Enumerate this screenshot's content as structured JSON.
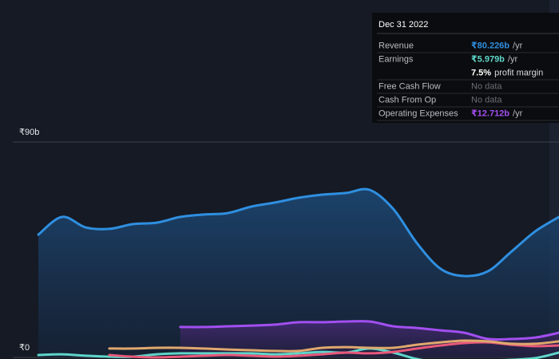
{
  "chart_data": {
    "type": "line",
    "categories": [
      null,
      null,
      null,
      null,
      null,
      null,
      null,
      null,
      null,
      null,
      null,
      null,
      null,
      null,
      null,
      null,
      null,
      null,
      null,
      null,
      null,
      null,
      null
    ],
    "ylim": [
      0,
      90
    ],
    "yticks": [
      {
        "value": 0,
        "label": "₹0"
      },
      {
        "value": 90,
        "label": "₹90b"
      }
    ],
    "grid": true,
    "series": [
      {
        "name": "Revenue",
        "color": "#2f8fe0",
        "area": true,
        "values": [
          51.3,
          58.7,
          54.3,
          53.7,
          55.7,
          56.3,
          58.7,
          59.7,
          60.3,
          63.0,
          64.7,
          66.7,
          68.0,
          68.7,
          70.0,
          62.0,
          47.7,
          37.0,
          34.0,
          36.0,
          44.3,
          52.7,
          58.7
        ]
      },
      {
        "name": "Earnings",
        "color": "#5fd6c9",
        "area": false,
        "values": [
          1.0,
          1.3,
          0.7,
          0.3,
          0.3,
          1.3,
          1.7,
          1.7,
          1.7,
          1.7,
          1.3,
          1.7,
          2.3,
          2.0,
          3.7,
          2.0,
          -0.7,
          -2.0,
          -2.0,
          -1.3,
          -1.0,
          -0.3,
          2.0
        ]
      },
      {
        "name": "Free Cash Flow",
        "color": "#e8587a",
        "area": false,
        "values": [
          null,
          null,
          null,
          1.0,
          0.3,
          0.0,
          0.3,
          0.7,
          1.0,
          0.7,
          0.3,
          0.7,
          1.3,
          2.0,
          1.7,
          2.3,
          3.7,
          5.0,
          6.0,
          6.3,
          5.3,
          4.7,
          5.0
        ]
      },
      {
        "name": "Cash From Op",
        "color": "#e0a86e",
        "area": false,
        "values": [
          null,
          null,
          null,
          3.7,
          3.7,
          4.0,
          4.0,
          3.7,
          3.3,
          3.0,
          2.7,
          2.7,
          4.0,
          4.3,
          4.0,
          4.0,
          5.3,
          6.3,
          7.0,
          6.7,
          5.7,
          5.7,
          6.7
        ]
      },
      {
        "name": "Operating Expenses",
        "color": "#a24ff0",
        "area": true,
        "values": [
          null,
          null,
          null,
          null,
          null,
          null,
          12.7,
          12.7,
          13.0,
          13.3,
          13.7,
          14.7,
          14.7,
          15.0,
          15.0,
          13.0,
          12.3,
          11.3,
          10.3,
          7.7,
          7.7,
          8.3,
          10.3
        ]
      }
    ],
    "tooltip": {
      "date": "Dec 31 2022",
      "rows": [
        {
          "value": "₹80.226b",
          "unit": "/yr"
        },
        {
          "value": "₹5.979b",
          "unit": "/yr"
        },
        {
          "value": "No data",
          "unit": null
        },
        {
          "value": "No data",
          "unit": null
        },
        {
          "value": "₹12.712b",
          "unit": "/yr"
        }
      ],
      "margin": {
        "value": "7.5%",
        "label": "profit margin"
      }
    }
  }
}
